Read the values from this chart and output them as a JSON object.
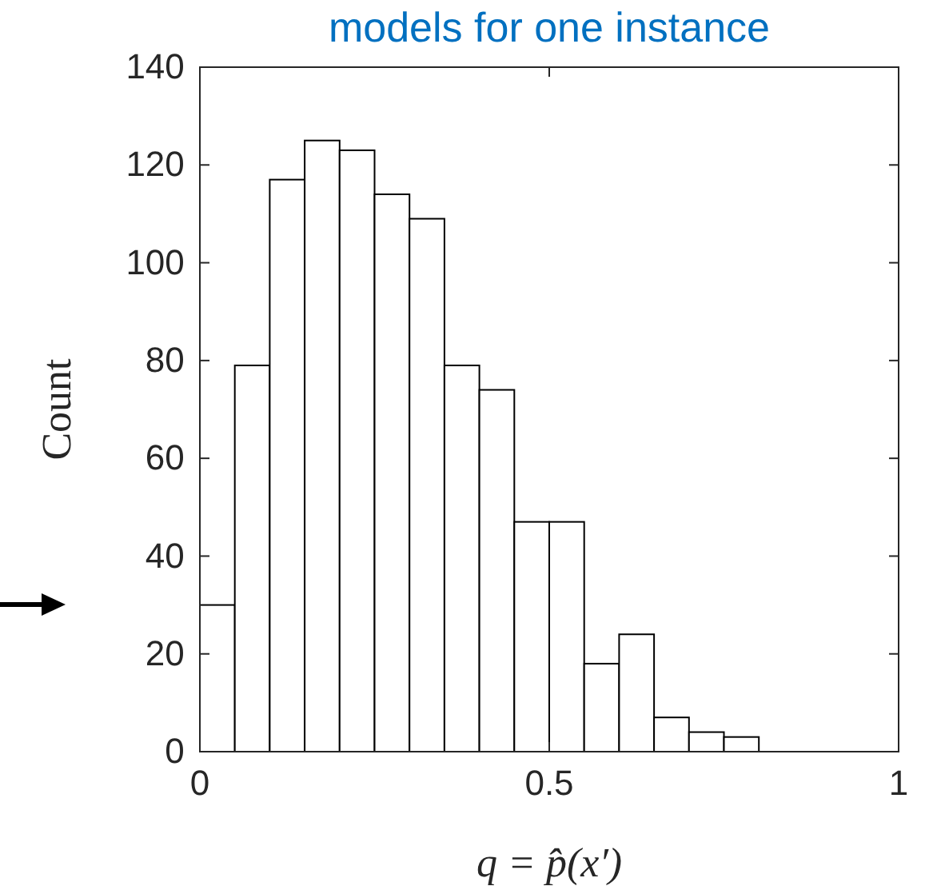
{
  "chart_data": {
    "type": "histogram",
    "title": "models for one instance",
    "xlabel": "q = p̂(x′)",
    "ylabel": "Count",
    "bins": [
      0,
      0.05,
      0.1,
      0.15,
      0.2,
      0.25,
      0.3,
      0.35,
      0.4,
      0.45,
      0.5,
      0.55,
      0.6,
      0.65,
      0.7,
      0.75,
      0.8
    ],
    "values": [
      30,
      79,
      117,
      125,
      123,
      114,
      109,
      79,
      74,
      47,
      47,
      18,
      24,
      7,
      4,
      3
    ],
    "color": "#ffffff",
    "xlim": [
      0,
      1
    ],
    "xticks": [
      0,
      0.5,
      1
    ],
    "ylim": [
      0,
      140
    ],
    "yticks": [
      0,
      20,
      40,
      60,
      80,
      100,
      120,
      140
    ],
    "grid": false
  }
}
